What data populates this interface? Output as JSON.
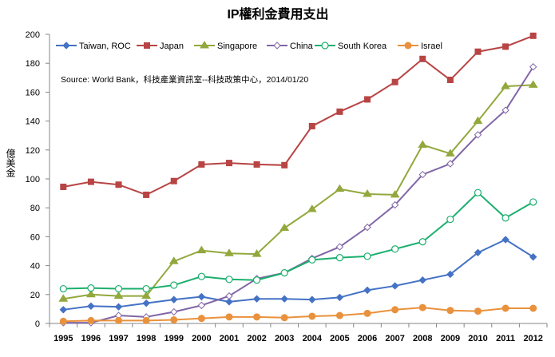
{
  "chart_data": {
    "type": "line",
    "title": "IP權利金費用支出",
    "ylabel": "億美金",
    "xlabel": "",
    "source": "Source: World Bank，科技產業資訊室--科技政策中心，2014/01/20",
    "x": [
      "1995",
      "1996",
      "1997",
      "1998",
      "1999",
      "2000",
      "2001",
      "2002",
      "2003",
      "2004",
      "2005",
      "2006",
      "2007",
      "2008",
      "2009",
      "2010",
      "2011",
      "2012"
    ],
    "ylim": [
      0,
      200
    ],
    "yticks": [
      "0",
      "20",
      "40",
      "60",
      "80",
      "100",
      "120",
      "140",
      "160",
      "180",
      "200"
    ],
    "grid": false,
    "legend": "top",
    "series": [
      {
        "name": "Taiwan, ROC",
        "color": "#4472C4",
        "marker": "diamond",
        "values": [
          9.5,
          12,
          11.5,
          14,
          16.5,
          18.5,
          15,
          17,
          17,
          16.5,
          18,
          23,
          26,
          30,
          34,
          49,
          58,
          46
        ]
      },
      {
        "name": "Japan",
        "color": "#B84444",
        "marker": "square",
        "values": [
          94.5,
          98,
          96,
          89,
          98.5,
          110,
          111,
          110,
          109.5,
          136.5,
          146.5,
          155,
          167,
          183,
          168.5,
          188,
          191.5,
          199
        ]
      },
      {
        "name": "Singapore",
        "color": "#92A83C",
        "marker": "triangle",
        "values": [
          17,
          20,
          19,
          19,
          43,
          50.5,
          48.5,
          48,
          66,
          79,
          93,
          89.5,
          89,
          123.5,
          117.5,
          140,
          164,
          165
        ]
      },
      {
        "name": "China",
        "color": "#8066A6",
        "marker": "open-diamond",
        "values": [
          0.5,
          0.5,
          5.5,
          4.5,
          8,
          12.5,
          19,
          31,
          35,
          45,
          53,
          66.5,
          82,
          103,
          110.5,
          130.5,
          147.5,
          177.5
        ]
      },
      {
        "name": "South Korea",
        "color": "#1BAF6E",
        "marker": "open-circle",
        "values": [
          24,
          24.5,
          24,
          24,
          26.5,
          32.5,
          30.5,
          30,
          35,
          44,
          45.5,
          46.5,
          51.5,
          56.5,
          72,
          90.5,
          73,
          84
        ]
      },
      {
        "name": "Israel",
        "color": "#E9913C",
        "marker": "circle",
        "values": [
          1.5,
          2,
          2,
          2,
          2.5,
          3.5,
          4.5,
          4.5,
          4,
          5,
          5.5,
          7,
          9.5,
          11,
          9,
          8.5,
          10.5,
          10.5
        ]
      }
    ]
  }
}
